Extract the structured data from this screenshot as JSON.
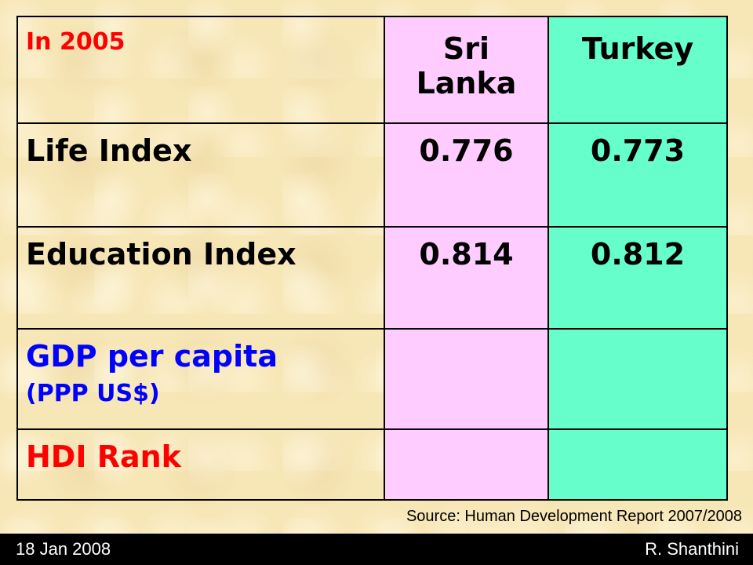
{
  "table": {
    "header": {
      "year_label": "In 2005",
      "country_1": "Sri Lanka",
      "country_2": "Turkey"
    },
    "rows": [
      {
        "label": "Life Index",
        "country_1": "0.776",
        "country_2": "0.773"
      },
      {
        "label": "Education Index",
        "country_1": "0.814",
        "country_2": "0.812"
      },
      {
        "label": "GDP per capita",
        "sublabel": "(PPP US$)",
        "country_1": "",
        "country_2": ""
      },
      {
        "label": "HDI Rank",
        "country_1": "",
        "country_2": ""
      }
    ]
  },
  "source": "Source: Human Development Report 2007/2008",
  "footer": {
    "date": "18 Jan 2008",
    "author": "R. Shanthini"
  },
  "colors": {
    "background": "#f7e6b6",
    "country_1_column": "#ffccff",
    "country_2_column": "#66ffcc",
    "accent_red": "#ff0000",
    "accent_blue": "#0000ff"
  }
}
